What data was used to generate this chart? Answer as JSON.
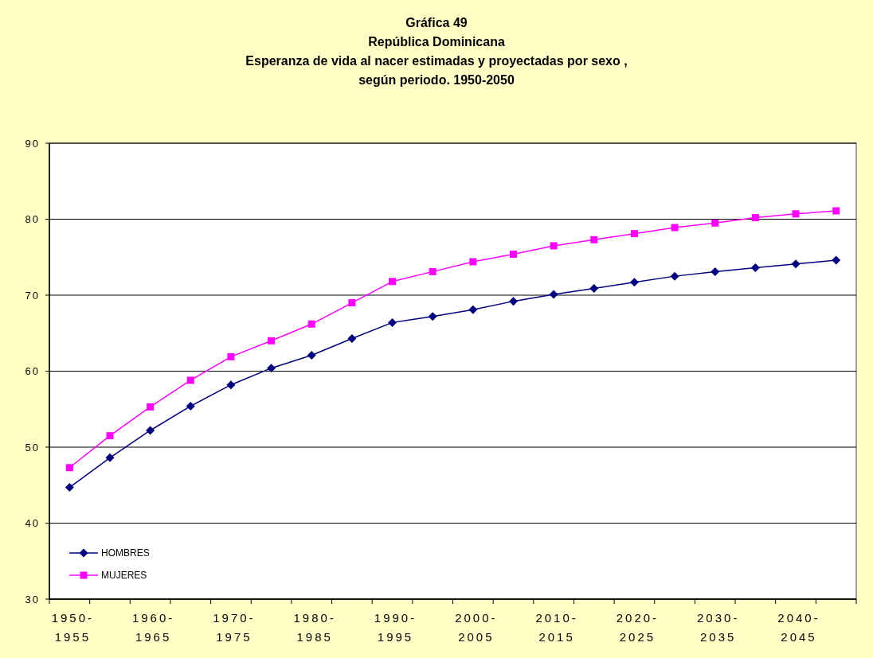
{
  "chart_data": {
    "type": "line",
    "title": "Gráfica 49\nRepública Dominicana\nEsperanza de vida al nacer estimadas y proyectadas por sexo ,\nsegún periodo. 1950-2050",
    "categories": [
      "1950-1955",
      null,
      "1960-1965",
      null,
      "1970-1975",
      null,
      "1980-1985",
      null,
      "1990-1995",
      null,
      "2000-2005",
      null,
      "2010-2015",
      null,
      "2020-2025",
      null,
      "2030-2035",
      null,
      "2040-2045",
      null
    ],
    "series": [
      {
        "name": "HOMBRES",
        "color": "#000080",
        "marker": "diamond",
        "values": [
          44.7,
          48.6,
          52.2,
          55.4,
          58.2,
          60.4,
          62.1,
          64.3,
          66.4,
          67.2,
          68.1,
          69.2,
          70.1,
          70.9,
          71.7,
          72.5,
          73.1,
          73.6,
          74.1,
          74.6
        ]
      },
      {
        "name": "MUJERES",
        "color": "#ff00ff",
        "marker": "square",
        "values": [
          47.3,
          51.5,
          55.3,
          58.8,
          61.9,
          64.0,
          66.2,
          69.0,
          71.8,
          73.1,
          74.4,
          75.4,
          76.5,
          77.3,
          78.1,
          78.9,
          79.5,
          80.2,
          80.7,
          81.1
        ]
      }
    ],
    "ylim": [
      30,
      90
    ],
    "yticks": [
      30,
      40,
      50,
      60,
      70,
      80,
      90
    ],
    "grid": "y",
    "legend": "bottom left"
  }
}
